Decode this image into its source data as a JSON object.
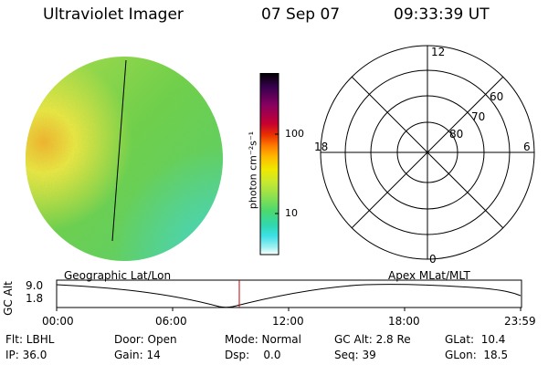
{
  "header": {
    "title": "Ultraviolet Imager",
    "date": "07 Sep 07",
    "time": "09:33:39 UT"
  },
  "colorbar": {
    "unit_label": "photon cm⁻²s⁻¹",
    "ticks": [
      "100",
      "10"
    ],
    "colors": [
      "#000000",
      "#3a0050",
      "#8a0060",
      "#c80030",
      "#e83000",
      "#ff7a00",
      "#ffb800",
      "#f0e800",
      "#c8e830",
      "#8ee050",
      "#4cd870",
      "#30d8b0",
      "#40e0e8",
      "#a0f0f0",
      "#ffffff"
    ]
  },
  "image_panel": {
    "colors": {
      "base": "#6fd040",
      "bright": "#f6e838",
      "hot": "#ffb020",
      "cool": "#40d8c0",
      "line": "#000000"
    }
  },
  "polar_grid": {
    "mlt_labels": {
      "top": "12",
      "left": "18",
      "right": "6",
      "bottom": "0"
    },
    "lat_labels": [
      "60",
      "70",
      "80"
    ]
  },
  "altitude_plot": {
    "ylabel": "GC Alt",
    "y_ticks": [
      "9.0",
      "1.8"
    ],
    "left_title": "Geographic Lat/Lon",
    "right_title": "Apex MLat/MLT",
    "x_ticks": [
      "00:00",
      "06:00",
      "12:00",
      "18:00",
      "23:59"
    ],
    "marker_color": "#c00000"
  },
  "info": {
    "filter": "Flt: LBHL",
    "door": "Door: Open",
    "mode": "Mode: Normal",
    "gc_alt": "GC Alt: 2.8 Re",
    "glat": "GLat:  10.4",
    "ip": "IP: 36.0",
    "gain": "Gain: 14",
    "dsp": "Dsp:    0.0",
    "seq": "Seq: 39",
    "glon": "GLon:  18.5"
  }
}
